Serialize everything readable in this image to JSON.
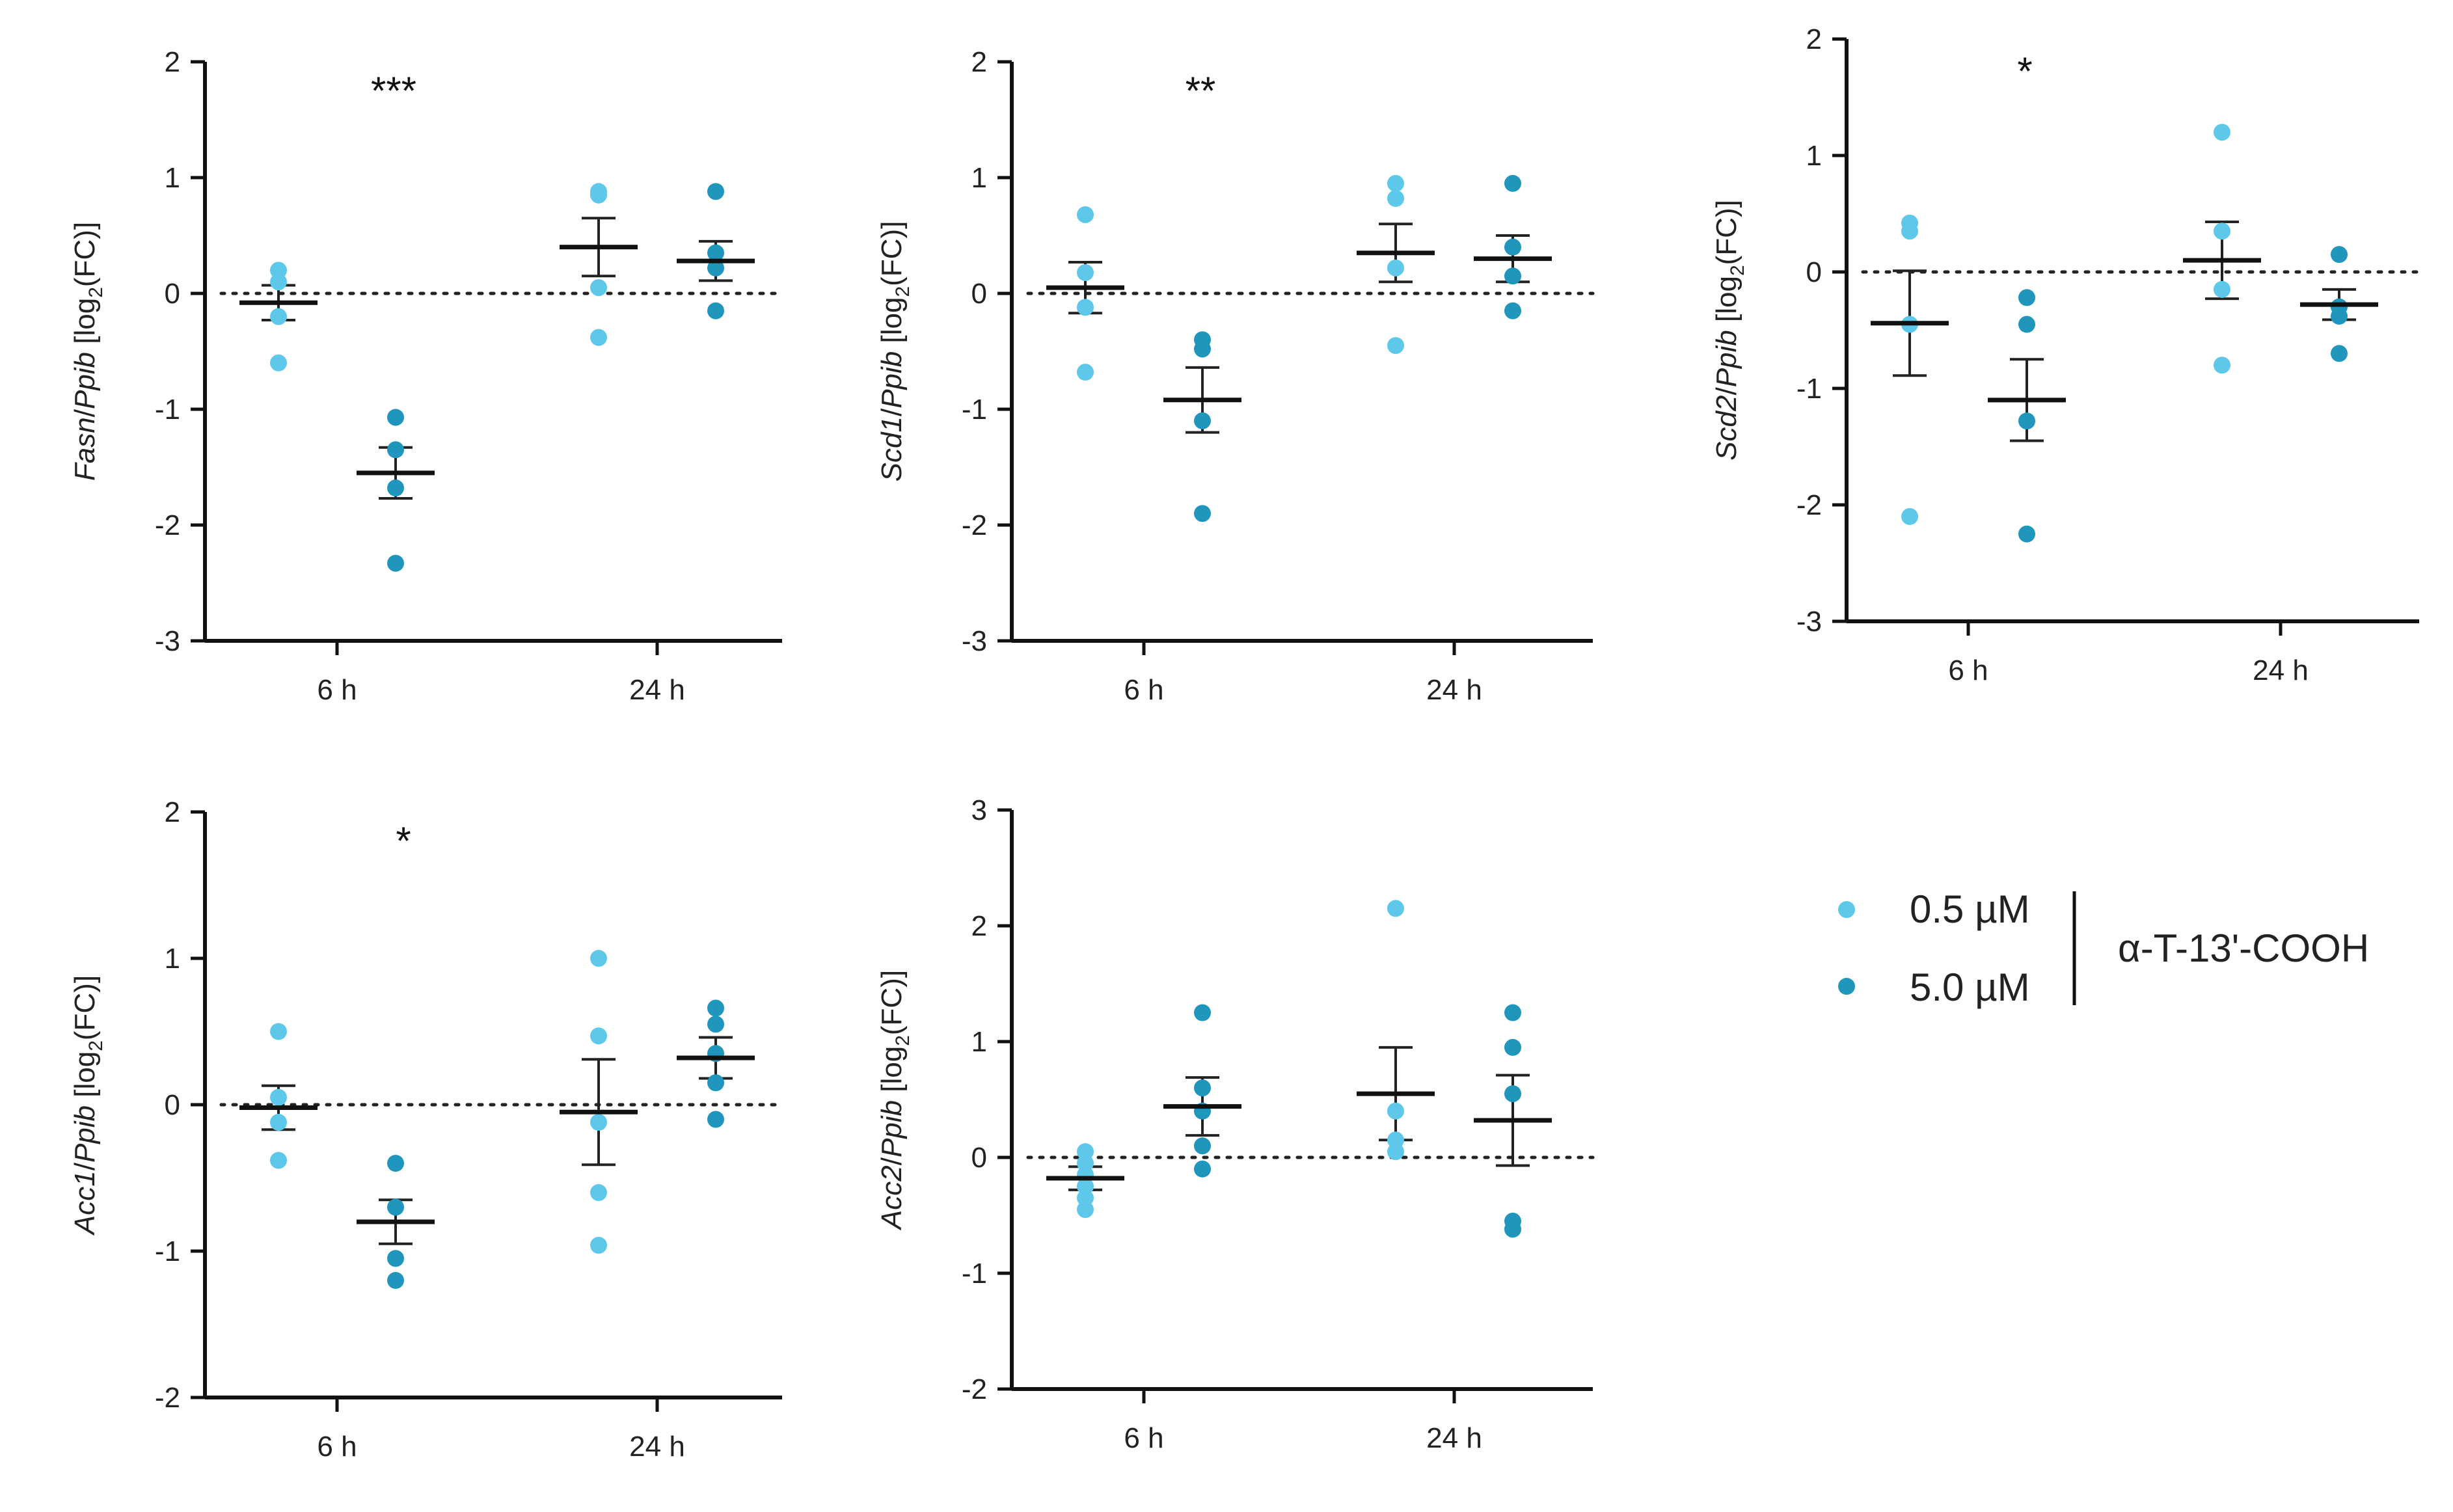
{
  "chart_data": [
    {
      "type": "scatter",
      "title": "",
      "ylabel": {
        "gene": "Fasn",
        "ref": "Ppib",
        "suffix": "[log",
        "sub": "2",
        "end": "(FC)]"
      },
      "ylim": [
        -3,
        2
      ],
      "yticks": [
        2,
        1,
        0,
        -1,
        -2,
        -3
      ],
      "categories": [
        "6 h",
        "24 h"
      ],
      "significance": "***",
      "groups": [
        {
          "x": "6 h",
          "series": "0.5 µM",
          "points": [
            0.2,
            0.1,
            -0.2,
            -0.6
          ],
          "mean": -0.08,
          "sem": 0.15
        },
        {
          "x": "6 h",
          "series": "5.0 µM",
          "points": [
            -1.07,
            -1.35,
            -1.68,
            -2.33
          ],
          "mean": -1.55,
          "sem": 0.22
        },
        {
          "x": "24 h",
          "series": "0.5 µM",
          "points": [
            0.88,
            0.85,
            0.05,
            -0.38
          ],
          "mean": 0.4,
          "sem": 0.25
        },
        {
          "x": "24 h",
          "series": "5.0 µM",
          "points": [
            0.88,
            0.35,
            0.22,
            -0.15
          ],
          "mean": 0.28,
          "sem": 0.17
        }
      ]
    },
    {
      "type": "scatter",
      "title": "",
      "ylabel": {
        "gene": "Scd1",
        "ref": "Ppib",
        "suffix": "[log",
        "sub": "2",
        "end": "(FC)]"
      },
      "ylim": [
        -3,
        2
      ],
      "yticks": [
        2,
        1,
        0,
        -1,
        -2,
        -3
      ],
      "categories": [
        "6 h",
        "24 h"
      ],
      "significance": "**",
      "groups": [
        {
          "x": "6 h",
          "series": "0.5 µM",
          "points": [
            0.68,
            0.18,
            -0.12,
            -0.68
          ],
          "mean": 0.05,
          "sem": 0.22
        },
        {
          "x": "6 h",
          "series": "5.0 µM",
          "points": [
            -0.4,
            -0.48,
            -1.1,
            -1.9
          ],
          "mean": -0.92,
          "sem": 0.28
        },
        {
          "x": "24 h",
          "series": "0.5 µM",
          "points": [
            0.95,
            0.82,
            0.22,
            -0.45
          ],
          "mean": 0.35,
          "sem": 0.25
        },
        {
          "x": "24 h",
          "series": "5.0 µM",
          "points": [
            0.95,
            0.4,
            0.15,
            -0.15
          ],
          "mean": 0.3,
          "sem": 0.2
        }
      ]
    },
    {
      "type": "scatter",
      "title": "",
      "ylabel": {
        "gene": "Scd2",
        "ref": "Ppib",
        "suffix": "[log",
        "sub": "2",
        "end": "(FC)]"
      },
      "ylim": [
        -3,
        2
      ],
      "yticks": [
        2,
        1,
        0,
        -1,
        -2,
        -3
      ],
      "categories": [
        "6 h",
        "24 h"
      ],
      "significance": "*",
      "groups": [
        {
          "x": "6 h",
          "series": "0.5 µM",
          "points": [
            0.42,
            0.35,
            -0.45,
            -2.1
          ],
          "mean": -0.44,
          "sem": 0.45
        },
        {
          "x": "6 h",
          "series": "5.0 µM",
          "points": [
            -0.22,
            -0.45,
            -1.28,
            -2.25
          ],
          "mean": -1.1,
          "sem": 0.35
        },
        {
          "x": "24 h",
          "series": "0.5 µM",
          "points": [
            1.2,
            0.35,
            -0.15,
            -0.8
          ],
          "mean": 0.1,
          "sem": 0.33
        },
        {
          "x": "24 h",
          "series": "5.0 µM",
          "points": [
            0.15,
            -0.3,
            -0.38,
            -0.7
          ],
          "mean": -0.28,
          "sem": 0.13
        }
      ]
    },
    {
      "type": "scatter",
      "title": "",
      "ylabel": {
        "gene": "Acc1",
        "ref": "Ppib",
        "suffix": "[log",
        "sub": "2",
        "end": "(FC)]"
      },
      "ylim": [
        -2,
        2
      ],
      "yticks": [
        2,
        1,
        0,
        -1,
        -2
      ],
      "categories": [
        "6 h",
        "24 h"
      ],
      "significance": "*",
      "groups": [
        {
          "x": "6 h",
          "series": "0.5 µM",
          "points": [
            0.5,
            0.05,
            -0.12,
            -0.38
          ],
          "mean": -0.02,
          "sem": 0.15
        },
        {
          "x": "6 h",
          "series": "5.0 µM",
          "points": [
            -0.4,
            -0.7,
            -1.05,
            -1.2
          ],
          "mean": -0.8,
          "sem": 0.15
        },
        {
          "x": "24 h",
          "series": "0.5 µM",
          "points": [
            1.0,
            0.47,
            -0.12,
            -0.6,
            -0.96
          ],
          "mean": -0.05,
          "sem": 0.36
        },
        {
          "x": "24 h",
          "series": "5.0 µM",
          "points": [
            0.66,
            0.55,
            0.35,
            0.15,
            -0.1
          ],
          "mean": 0.32,
          "sem": 0.14
        }
      ]
    },
    {
      "type": "scatter",
      "title": "",
      "ylabel": {
        "gene": "Acc2",
        "ref": "Ppib",
        "suffix": "[log",
        "sub": "2",
        "end": "(FC)]"
      },
      "ylim": [
        -2,
        3
      ],
      "yticks": [
        3,
        2,
        1,
        0,
        -1,
        -2
      ],
      "categories": [
        "6 h",
        "24 h"
      ],
      "significance": "",
      "groups": [
        {
          "x": "6 h",
          "series": "0.5 µM",
          "points": [
            0.05,
            -0.05,
            -0.15,
            -0.25,
            -0.35,
            -0.45
          ],
          "mean": -0.18,
          "sem": 0.1
        },
        {
          "x": "6 h",
          "series": "5.0 µM",
          "points": [
            1.25,
            0.6,
            0.4,
            0.1,
            -0.1
          ],
          "mean": 0.44,
          "sem": 0.25
        },
        {
          "x": "24 h",
          "series": "0.5 µM",
          "points": [
            2.15,
            0.4,
            0.15,
            0.05
          ],
          "mean": 0.55,
          "sem": 0.4
        },
        {
          "x": "24 h",
          "series": "5.0 µM",
          "points": [
            1.25,
            0.95,
            0.55,
            -0.55,
            -0.62
          ],
          "mean": 0.32,
          "sem": 0.39
        }
      ]
    }
  ],
  "legend": {
    "entries": [
      {
        "label": "0.5 µM",
        "color": "#5ec8ea"
      },
      {
        "label": "5.0 µM",
        "color": "#2196bd"
      }
    ],
    "compound": "α-T-13'-COOH"
  },
  "colors": {
    "light": "#5ec8ea",
    "dark": "#2196bd",
    "axis": "#111111"
  }
}
